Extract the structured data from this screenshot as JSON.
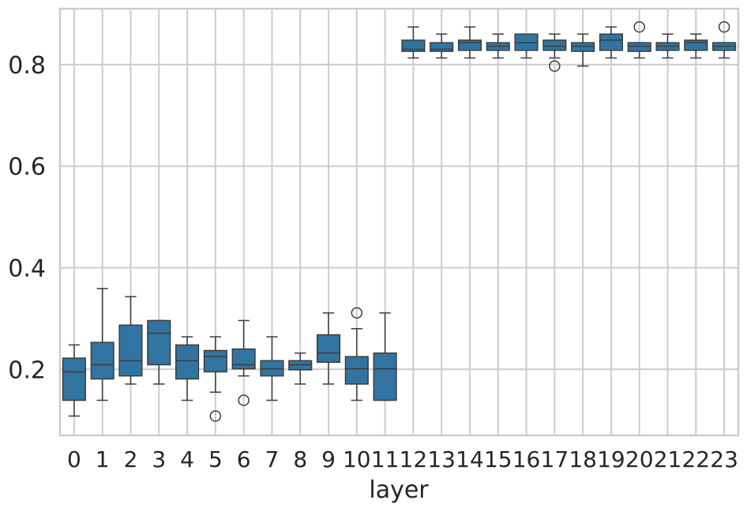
{
  "chart_data": {
    "type": "box",
    "title": "",
    "xlabel": "layer",
    "ylabel": "",
    "categories": [
      "0",
      "1",
      "2",
      "3",
      "4",
      "5",
      "6",
      "7",
      "8",
      "9",
      "10",
      "11",
      "12",
      "13",
      "14",
      "15",
      "16",
      "17",
      "18",
      "19",
      "20",
      "21",
      "22",
      "23"
    ],
    "ylim": [
      0.07,
      0.91
    ],
    "yticks": [
      0.2,
      0.4,
      0.6,
      0.8
    ],
    "ytick_labels": [
      "0.2",
      "0.4",
      "0.6",
      "0.8"
    ],
    "grid": true,
    "box_color": "#3274a1",
    "line_color": "#3d3d3d",
    "boxes": [
      {
        "q1": 0.139,
        "median": 0.195,
        "q3": 0.222,
        "whisker_low": 0.108,
        "whisker_high": 0.248,
        "outliers": []
      },
      {
        "q1": 0.181,
        "median": 0.209,
        "q3": 0.253,
        "whisker_low": 0.139,
        "whisker_high": 0.359,
        "outliers": []
      },
      {
        "q1": 0.187,
        "median": 0.217,
        "q3": 0.287,
        "whisker_low": 0.171,
        "whisker_high": 0.343,
        "outliers": []
      },
      {
        "q1": 0.209,
        "median": 0.271,
        "q3": 0.296,
        "whisker_low": 0.171,
        "whisker_high": 0.296,
        "outliers": []
      },
      {
        "q1": 0.181,
        "median": 0.217,
        "q3": 0.248,
        "whisker_low": 0.139,
        "whisker_high": 0.264,
        "outliers": []
      },
      {
        "q1": 0.195,
        "median": 0.225,
        "q3": 0.237,
        "whisker_low": 0.155,
        "whisker_high": 0.264,
        "outliers": [
          0.108
        ]
      },
      {
        "q1": 0.201,
        "median": 0.209,
        "q3": 0.24,
        "whisker_low": 0.187,
        "whisker_high": 0.296,
        "outliers": [
          0.139
        ]
      },
      {
        "q1": 0.187,
        "median": 0.201,
        "q3": 0.217,
        "whisker_low": 0.139,
        "whisker_high": 0.264,
        "outliers": []
      },
      {
        "q1": 0.199,
        "median": 0.209,
        "q3": 0.217,
        "whisker_low": 0.171,
        "whisker_high": 0.232,
        "outliers": []
      },
      {
        "q1": 0.214,
        "median": 0.232,
        "q3": 0.268,
        "whisker_low": 0.171,
        "whisker_high": 0.311,
        "outliers": []
      },
      {
        "q1": 0.171,
        "median": 0.201,
        "q3": 0.225,
        "whisker_low": 0.139,
        "whisker_high": 0.28,
        "outliers": [
          0.311
        ]
      },
      {
        "q1": 0.139,
        "median": 0.201,
        "q3": 0.232,
        "whisker_low": 0.139,
        "whisker_high": 0.311,
        "outliers": []
      },
      {
        "q1": 0.826,
        "median": 0.83,
        "q3": 0.848,
        "whisker_low": 0.813,
        "whisker_high": 0.874,
        "outliers": []
      },
      {
        "q1": 0.826,
        "median": 0.83,
        "q3": 0.843,
        "whisker_low": 0.813,
        "whisker_high": 0.86,
        "outliers": []
      },
      {
        "q1": 0.828,
        "median": 0.843,
        "q3": 0.848,
        "whisker_low": 0.813,
        "whisker_high": 0.874,
        "outliers": []
      },
      {
        "q1": 0.828,
        "median": 0.836,
        "q3": 0.843,
        "whisker_low": 0.813,
        "whisker_high": 0.86,
        "outliers": []
      },
      {
        "q1": 0.828,
        "median": 0.843,
        "q3": 0.86,
        "whisker_low": 0.813,
        "whisker_high": 0.86,
        "outliers": []
      },
      {
        "q1": 0.828,
        "median": 0.836,
        "q3": 0.848,
        "whisker_low": 0.813,
        "whisker_high": 0.86,
        "outliers": [
          0.797
        ]
      },
      {
        "q1": 0.826,
        "median": 0.836,
        "q3": 0.843,
        "whisker_low": 0.797,
        "whisker_high": 0.86,
        "outliers": []
      },
      {
        "q1": 0.828,
        "median": 0.848,
        "q3": 0.86,
        "whisker_low": 0.813,
        "whisker_high": 0.874,
        "outliers": []
      },
      {
        "q1": 0.826,
        "median": 0.836,
        "q3": 0.843,
        "whisker_low": 0.813,
        "whisker_high": 0.843,
        "outliers": [
          0.874
        ]
      },
      {
        "q1": 0.828,
        "median": 0.836,
        "q3": 0.843,
        "whisker_low": 0.813,
        "whisker_high": 0.86,
        "outliers": []
      },
      {
        "q1": 0.828,
        "median": 0.843,
        "q3": 0.848,
        "whisker_low": 0.813,
        "whisker_high": 0.86,
        "outliers": []
      },
      {
        "q1": 0.828,
        "median": 0.836,
        "q3": 0.843,
        "whisker_low": 0.813,
        "whisker_high": 0.843,
        "outliers": [
          0.874
        ]
      }
    ]
  }
}
